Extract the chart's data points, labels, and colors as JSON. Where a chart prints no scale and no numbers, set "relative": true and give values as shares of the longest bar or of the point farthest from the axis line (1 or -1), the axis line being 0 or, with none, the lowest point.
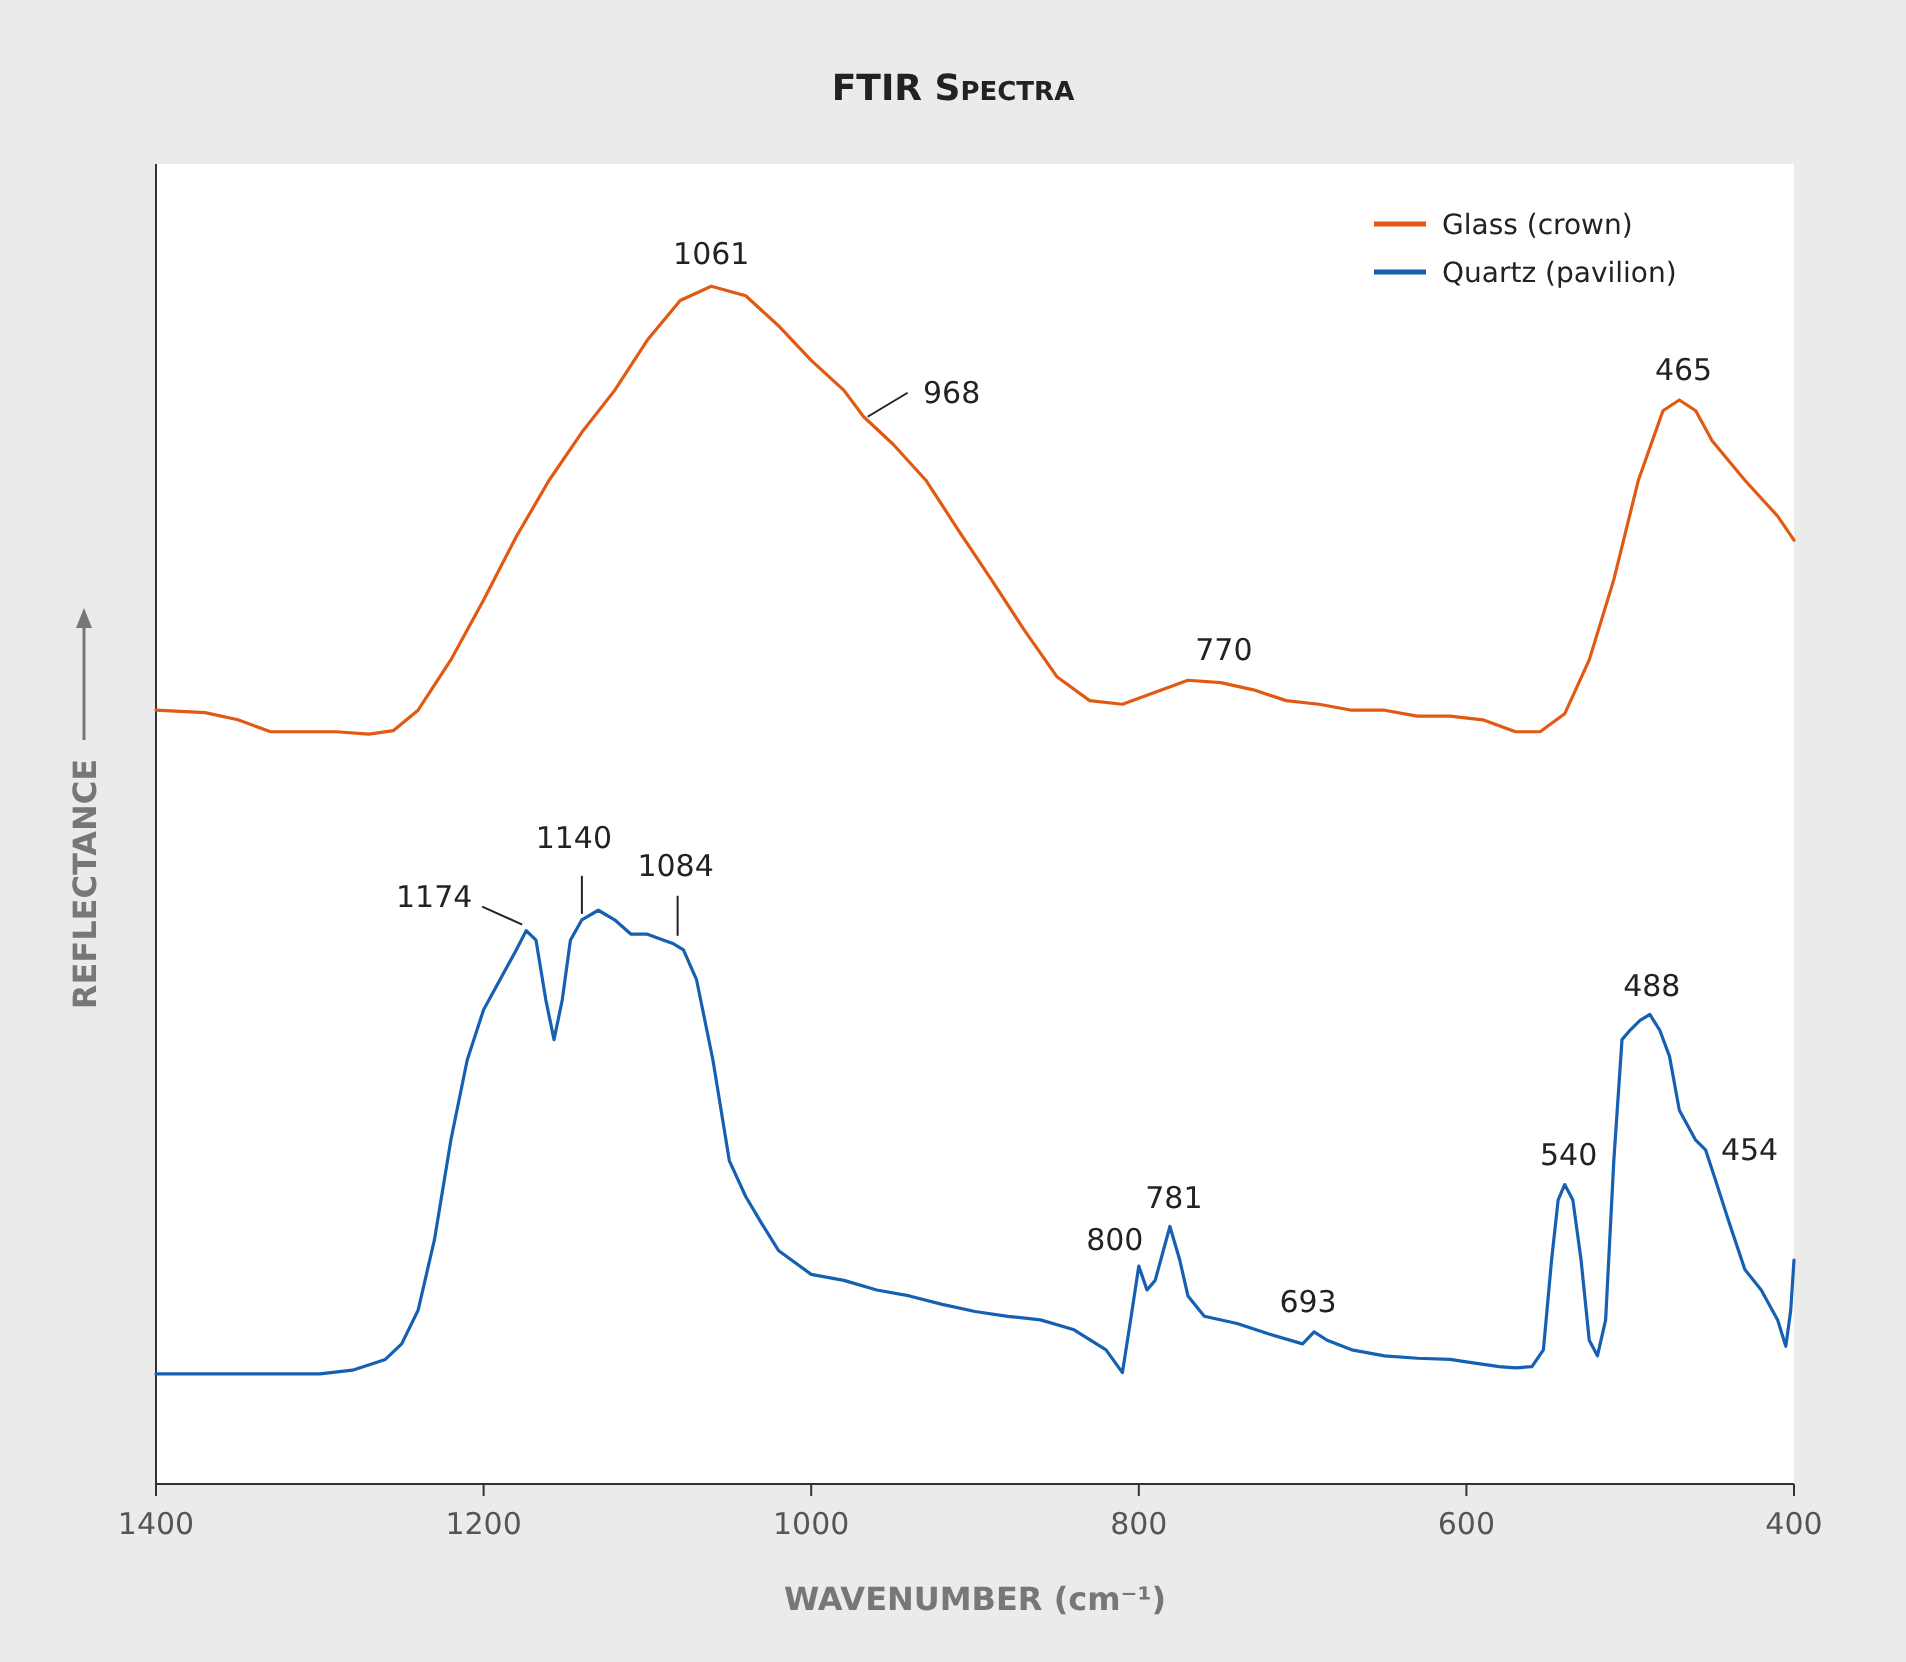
{
  "chart_data": {
    "type": "line",
    "title": "FTIR Spectra",
    "xlabel": "WAVENUMBER (cm⁻¹)",
    "ylabel": "REFLECTANCE",
    "relative": true,
    "legend": "top right",
    "grid": false,
    "xlim": [
      1400,
      400
    ],
    "xticks": [
      1400,
      1200,
      1000,
      800,
      600,
      400
    ],
    "series": [
      {
        "name": "Glass (crown)",
        "color": "#e05a12",
        "x": [
          1400,
          1370,
          1350,
          1330,
          1310,
          1290,
          1270,
          1255,
          1240,
          1220,
          1200,
          1180,
          1160,
          1140,
          1120,
          1100,
          1080,
          1061,
          1040,
          1020,
          1000,
          980,
          968,
          950,
          930,
          910,
          890,
          870,
          850,
          830,
          810,
          790,
          770,
          750,
          730,
          710,
          690,
          670,
          650,
          630,
          610,
          590,
          570,
          555,
          540,
          525,
          510,
          495,
          480,
          470,
          460,
          450,
          430,
          410,
          400
        ],
        "values": [
          0.646,
          0.644,
          0.638,
          0.628,
          0.628,
          0.628,
          0.626,
          0.629,
          0.646,
          0.688,
          0.738,
          0.791,
          0.838,
          0.878,
          0.913,
          0.955,
          0.988,
          1.0,
          0.992,
          0.967,
          0.938,
          0.913,
          0.891,
          0.868,
          0.838,
          0.796,
          0.755,
          0.713,
          0.674,
          0.654,
          0.651,
          0.661,
          0.671,
          0.669,
          0.663,
          0.654,
          0.651,
          0.646,
          0.646,
          0.641,
          0.641,
          0.638,
          0.628,
          0.628,
          0.643,
          0.688,
          0.755,
          0.838,
          0.896,
          0.905,
          0.896,
          0.871,
          0.838,
          0.808,
          0.788
        ]
      },
      {
        "name": "Quartz (pavilion)",
        "color": "#1560b0",
        "x": [
          1400,
          1350,
          1300,
          1280,
          1260,
          1250,
          1240,
          1230,
          1220,
          1210,
          1200,
          1190,
          1180,
          1174,
          1168,
          1162,
          1157,
          1152,
          1147,
          1140,
          1130,
          1120,
          1110,
          1100,
          1090,
          1084,
          1078,
          1070,
          1060,
          1050,
          1040,
          1030,
          1020,
          1000,
          980,
          960,
          940,
          920,
          900,
          880,
          860,
          840,
          820,
          810,
          805,
          800,
          795,
          790,
          781,
          775,
          770,
          760,
          740,
          720,
          700,
          693,
          685,
          670,
          650,
          630,
          610,
          600,
          580,
          570,
          560,
          553,
          548,
          544,
          540,
          535,
          530,
          525,
          520,
          515,
          510,
          505,
          500,
          494,
          488,
          482,
          476,
          470,
          460,
          454,
          448,
          440,
          430,
          420,
          410,
          405,
          402,
          400
        ],
        "values": [
          0.092,
          0.092,
          0.092,
          0.095,
          0.104,
          0.117,
          0.145,
          0.204,
          0.287,
          0.354,
          0.396,
          0.421,
          0.446,
          0.462,
          0.454,
          0.404,
          0.371,
          0.404,
          0.454,
          0.471,
          0.479,
          0.471,
          0.459,
          0.459,
          0.454,
          0.451,
          0.446,
          0.421,
          0.354,
          0.27,
          0.24,
          0.217,
          0.195,
          0.175,
          0.17,
          0.162,
          0.157,
          0.15,
          0.144,
          0.14,
          0.137,
          0.129,
          0.112,
          0.093,
          0.137,
          0.182,
          0.162,
          0.17,
          0.215,
          0.187,
          0.157,
          0.14,
          0.134,
          0.125,
          0.117,
          0.127,
          0.12,
          0.112,
          0.107,
          0.105,
          0.104,
          0.102,
          0.098,
          0.097,
          0.098,
          0.112,
          0.187,
          0.237,
          0.25,
          0.237,
          0.187,
          0.12,
          0.107,
          0.137,
          0.27,
          0.371,
          0.379,
          0.387,
          0.392,
          0.379,
          0.357,
          0.312,
          0.287,
          0.279,
          0.254,
          0.22,
          0.179,
          0.162,
          0.137,
          0.115,
          0.145,
          0.187
        ]
      }
    ],
    "annotations": [
      {
        "text": "1061",
        "x": 1061,
        "y": 1.0
      },
      {
        "text": "968",
        "x": 968,
        "y": 0.891
      },
      {
        "text": "770",
        "x": 770,
        "y": 0.671
      },
      {
        "text": "465",
        "x": 465,
        "y": 0.905
      },
      {
        "text": "1174",
        "x": 1174,
        "y": 0.462
      },
      {
        "text": "1140",
        "x": 1140,
        "y": 0.471
      },
      {
        "text": "1084",
        "x": 1084,
        "y": 0.451
      },
      {
        "text": "800",
        "x": 800,
        "y": 0.182
      },
      {
        "text": "781",
        "x": 781,
        "y": 0.215
      },
      {
        "text": "693",
        "x": 693,
        "y": 0.127
      },
      {
        "text": "540",
        "x": 540,
        "y": 0.25
      },
      {
        "text": "488",
        "x": 488,
        "y": 0.392
      },
      {
        "text": "454",
        "x": 454,
        "y": 0.279
      }
    ]
  }
}
